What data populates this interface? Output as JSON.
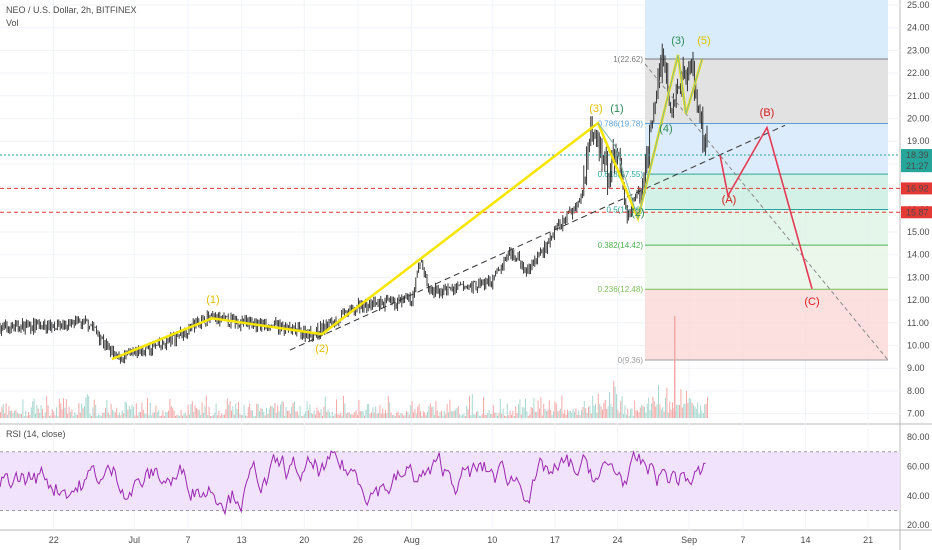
{
  "header": {
    "symbol": "NEO / U.S. Dollar, 2h, BITFINEX",
    "vol_label": "Vol"
  },
  "rsi": {
    "label": "RSI (14, close)",
    "ticks": [
      "80.00",
      "60.00",
      "40.00",
      "20.00"
    ],
    "upper": 70,
    "lower": 30
  },
  "price_axis": {
    "ticks": [
      "25.00",
      "24.00",
      "23.00",
      "22.00",
      "21.00",
      "20.00",
      "19.00",
      "18.00",
      "17.00",
      "16.00",
      "15.00",
      "14.00",
      "13.00",
      "12.00",
      "11.00",
      "10.00",
      "9.00",
      "8.00",
      "7.00"
    ]
  },
  "time_axis": {
    "ticks": [
      "22",
      "Jul",
      "7",
      "13",
      "20",
      "26",
      "Aug",
      "10",
      "17",
      "24",
      "Sep",
      "7",
      "14",
      "21"
    ]
  },
  "badges": [
    {
      "text": "18.39",
      "bg": "#26a69a",
      "value": 18.39
    },
    {
      "text": "21:27",
      "bg": "#26a69a",
      "value": 17.9
    },
    {
      "text": "16.92",
      "bg": "#e53935",
      "value": 16.92
    },
    {
      "text": "15.87",
      "bg": "#e53935",
      "value": 15.87
    }
  ],
  "fib": [
    {
      "label": "1(22.62)",
      "value": 22.62
    },
    {
      "label": "0.786(19.78)",
      "value": 19.78
    },
    {
      "label": "0.618(17.55)",
      "value": 17.55
    },
    {
      "label": "0.5(15.99)",
      "value": 15.99
    },
    {
      "label": "0.382(14.42)",
      "value": 14.42
    },
    {
      "label": "0.236(12.48)",
      "value": 12.48
    },
    {
      "label": "0(9.36)",
      "value": 9.36
    }
  ],
  "waves": [
    {
      "text": "(1)",
      "color": "#e0c000"
    },
    {
      "text": "(2)",
      "color": "#e0c000"
    },
    {
      "text": "(3)",
      "color": "#e0c000"
    },
    {
      "text": "(1)",
      "color": "#2e8b57"
    },
    {
      "text": "(2)",
      "color": "#2e8b57"
    },
    {
      "text": "(3)",
      "color": "#2e8b57"
    },
    {
      "text": "(4)",
      "color": "#2e8b57"
    },
    {
      "text": "(5)",
      "color": "#e0c000"
    },
    {
      "text": "(A)",
      "color": "#d81b1b"
    },
    {
      "text": "(B)",
      "color": "#d81b1b"
    },
    {
      "text": "(C)",
      "color": "#d81b1b"
    }
  ],
  "colors": {
    "up": "#26a69a",
    "down": "#ef5350",
    "candle": "#222222",
    "impulse": "#f5e500",
    "correction": "#e53955",
    "rsi": "#9c27b0"
  },
  "chart_data": {
    "type": "line",
    "title": "NEO / U.S. Dollar, 2h, BITFINEX",
    "xlabel": "",
    "ylabel": "",
    "ylim": [
      7,
      25
    ],
    "price_path": [
      {
        "x": "2020-06-16",
        "y": 10.8
      },
      {
        "x": "2020-06-22",
        "y": 10.9
      },
      {
        "x": "2020-06-26",
        "y": 11.0
      },
      {
        "x": "2020-06-29",
        "y": 9.4
      },
      {
        "x": "2020-07-04",
        "y": 10.0
      },
      {
        "x": "2020-07-09",
        "y": 11.2
      },
      {
        "x": "2020-07-16",
        "y": 10.9
      },
      {
        "x": "2020-07-21",
        "y": 10.5
      },
      {
        "x": "2020-07-26",
        "y": 11.7
      },
      {
        "x": "2020-08-01",
        "y": 12.0
      },
      {
        "x": "2020-08-02",
        "y": 13.8
      },
      {
        "x": "2020-08-03",
        "y": 12.3
      },
      {
        "x": "2020-08-10",
        "y": 12.8
      },
      {
        "x": "2020-08-12",
        "y": 14.2
      },
      {
        "x": "2020-08-14",
        "y": 13.3
      },
      {
        "x": "2020-08-17",
        "y": 15.0
      },
      {
        "x": "2020-08-20",
        "y": 16.5
      },
      {
        "x": "2020-08-21",
        "y": 19.8
      },
      {
        "x": "2020-08-23",
        "y": 17.5
      },
      {
        "x": "2020-08-24",
        "y": 18.8
      },
      {
        "x": "2020-08-25",
        "y": 15.6
      },
      {
        "x": "2020-08-27",
        "y": 17.5
      },
      {
        "x": "2020-08-29",
        "y": 22.8
      },
      {
        "x": "2020-08-30",
        "y": 20.2
      },
      {
        "x": "2020-09-01",
        "y": 22.6
      },
      {
        "x": "2020-09-03",
        "y": 18.39
      }
    ],
    "projection": [
      {
        "x": "2020-09-03",
        "y": 18.39
      },
      {
        "x": "2020-09-05",
        "y": 16.6
      },
      {
        "x": "2020-09-10",
        "y": 19.6
      },
      {
        "x": "2020-09-14",
        "y": 12.5
      }
    ],
    "current_price": 18.39,
    "levels": [
      16.92,
      15.87
    ],
    "rsi_ylim": [
      20,
      80
    ]
  }
}
